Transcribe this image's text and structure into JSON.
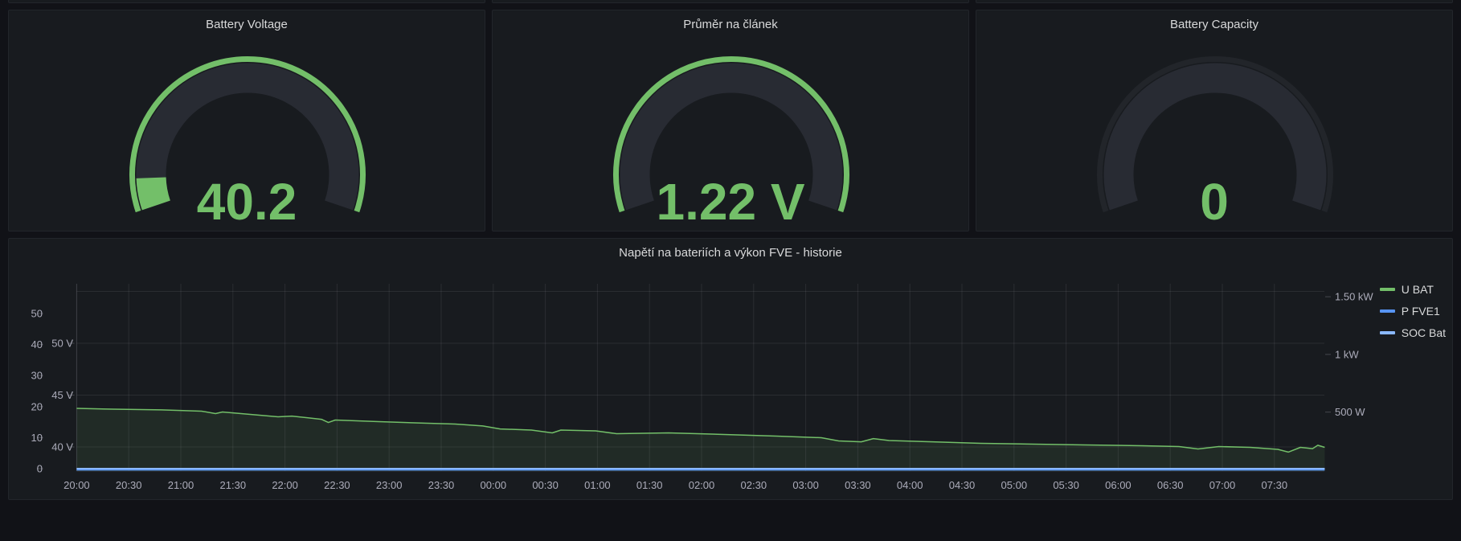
{
  "page": {
    "background": "#111217"
  },
  "gauges": [
    {
      "title": "Battery Voltage",
      "value": "40.2",
      "color": "#73BF69"
    },
    {
      "title": "Průměr na článek",
      "value": "1.22 V",
      "color": "#73BF69"
    },
    {
      "title": "Battery Capacity",
      "value": "0",
      "color": "#73BF69"
    }
  ],
  "chart": {
    "title": "Napětí na bateriích a výkon FVE - historie",
    "legend": [
      {
        "label": "U BAT",
        "color": "#73BF69"
      },
      {
        "label": "P FVE1",
        "color": "#5794F2"
      },
      {
        "label": "SOC Bat",
        "color": "#8AB8FF"
      }
    ]
  },
  "chart_data": {
    "type": "line",
    "title": "Napětí na bateriích a výkon FVE - historie",
    "grid": true,
    "legend_position": "right-top",
    "x_axis": {
      "tick_interval_minutes": 30,
      "tick_labels": [
        "20:00",
        "20:30",
        "21:00",
        "21:30",
        "22:00",
        "22:30",
        "23:00",
        "23:30",
        "00:00",
        "00:30",
        "01:00",
        "01:30",
        "02:00",
        "02:30",
        "03:00",
        "03:30",
        "04:00",
        "04:30",
        "05:00",
        "05:30",
        "06:00",
        "06:30",
        "07:00",
        "07:30"
      ]
    },
    "axes": {
      "percent": {
        "side": "left",
        "tick_values": [
          0,
          10,
          20,
          30,
          40,
          50
        ],
        "tick_labels": [
          "0",
          "10",
          "20",
          "30",
          "40",
          "50"
        ],
        "range": [
          0,
          59
        ]
      },
      "voltage": {
        "side": "left",
        "tick_values": [
          40,
          45,
          50
        ],
        "tick_labels": [
          "40 V",
          "45 V",
          "50 V"
        ],
        "range": [
          37.7,
          55.7
        ],
        "grid_values": [
          40,
          45,
          50,
          55
        ]
      },
      "power": {
        "side": "right",
        "tick_values": [
          500,
          1000,
          1500
        ],
        "tick_labels": [
          "500 W",
          "1 kW",
          "1.50 kW"
        ],
        "range": [
          0,
          1620
        ]
      }
    },
    "series": [
      {
        "name": "U BAT",
        "axis": "voltage",
        "color": "#73BF69",
        "width": 1.5,
        "fill_opacity": 0.1,
        "points": [
          [
            0,
            43.72
          ],
          [
            21,
            43.64
          ],
          [
            49,
            43.57
          ],
          [
            72,
            43.45
          ],
          [
            80,
            43.22
          ],
          [
            84,
            43.37
          ],
          [
            100,
            43.14
          ],
          [
            116,
            42.91
          ],
          [
            124,
            42.98
          ],
          [
            141,
            42.67
          ],
          [
            145,
            42.36
          ],
          [
            149,
            42.6
          ],
          [
            174,
            42.44
          ],
          [
            202,
            42.29
          ],
          [
            218,
            42.21
          ],
          [
            234,
            42.02
          ],
          [
            244,
            41.74
          ],
          [
            262,
            41.63
          ],
          [
            274,
            41.36
          ],
          [
            279,
            41.63
          ],
          [
            299,
            41.55
          ],
          [
            311,
            41.28
          ],
          [
            341,
            41.36
          ],
          [
            373,
            41.2
          ],
          [
            403,
            41.05
          ],
          [
            429,
            40.89
          ],
          [
            439,
            40.58
          ],
          [
            452,
            40.5
          ],
          [
            459,
            40.81
          ],
          [
            468,
            40.62
          ],
          [
            493,
            40.5
          ],
          [
            521,
            40.35
          ],
          [
            551,
            40.27
          ],
          [
            581,
            40.19
          ],
          [
            614,
            40.12
          ],
          [
            635,
            40.04
          ],
          [
            646,
            39.81
          ],
          [
            658,
            40.04
          ],
          [
            676,
            39.96
          ],
          [
            692,
            39.77
          ],
          [
            698,
            39.5
          ],
          [
            705,
            39.96
          ],
          [
            712,
            39.84
          ],
          [
            715,
            40.16
          ],
          [
            719,
            39.96
          ]
        ]
      },
      {
        "name": "P FVE1",
        "axis": "power",
        "color": "#5794F2",
        "width": 2,
        "fill_opacity": 0,
        "points": [
          [
            0,
            0
          ],
          [
            719,
            0
          ]
        ]
      },
      {
        "name": "SOC Bat",
        "axis": "percent",
        "color": "#8AB8FF",
        "width": 2,
        "fill_opacity": 0,
        "points": [
          [
            0,
            0
          ],
          [
            719,
            0
          ]
        ]
      }
    ]
  }
}
